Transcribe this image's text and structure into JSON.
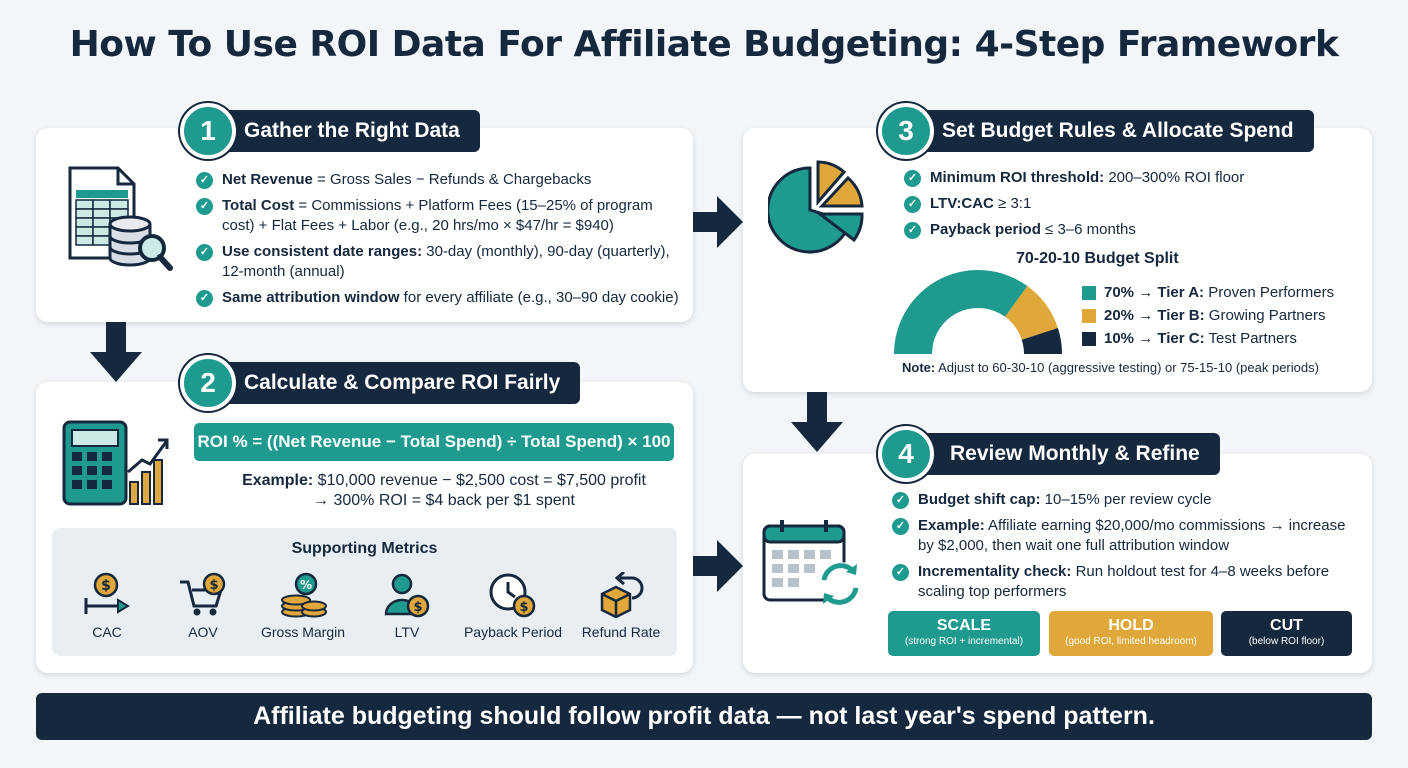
{
  "title": "How To Use ROI Data For Affiliate Budgeting: 4-Step Framework",
  "colors": {
    "teal": "#1f9a8f",
    "gold": "#e0a83a",
    "navy": "#15283d",
    "panel": "#e9eef3"
  },
  "step1": {
    "number": "1",
    "heading": "Gather the Right Data",
    "icon": "spreadsheet-database-icon",
    "bullets": [
      {
        "bold": "Net Revenue",
        "text": " = Gross Sales − Refunds & Chargebacks"
      },
      {
        "bold": "Total Cost",
        "text": " = Commissions + Platform Fees (15–25% of program cost) + Flat Fees + Labor (e.g., 20 hrs/mo × $47/hr = $940)"
      },
      {
        "bold": "Use consistent date ranges:",
        "text": " 30-day (monthly), 90-day (quarterly), 12-month (annual)"
      },
      {
        "bold": "Same attribution window",
        "text": " for every affiliate (e.g., 30–90 day cookie)"
      }
    ]
  },
  "step2": {
    "number": "2",
    "heading": "Calculate & Compare ROI Fairly",
    "icon": "calculator-chart-icon",
    "formula": "ROI % = ((Net Revenue − Total Spend) ÷ Total Spend) × 100",
    "example_bold": "Example:",
    "example_line1": " $10,000 revenue − $2,500 cost = $7,500 profit",
    "example_line2": "→ 300% ROI = $4 back per $1 spent",
    "metrics_title": "Supporting Metrics",
    "metrics": [
      {
        "label": "CAC",
        "icon": "coin-arrow-icon"
      },
      {
        "label": "AOV",
        "icon": "cart-coin-icon"
      },
      {
        "label": "Gross Margin",
        "icon": "coin-stack-icon"
      },
      {
        "label": "LTV",
        "icon": "person-coin-icon"
      },
      {
        "label": "Payback Period",
        "icon": "clock-coin-icon"
      },
      {
        "label": "Refund Rate",
        "icon": "box-return-icon"
      }
    ]
  },
  "step3": {
    "number": "3",
    "heading": "Set Budget Rules & Allocate Spend",
    "icon": "pie-chart-icon",
    "bullets": [
      {
        "bold": "Minimum ROI threshold:",
        "text": " 200–300% ROI floor"
      },
      {
        "bold": "LTV:CAC",
        "text": " ≥ 3:1"
      },
      {
        "bold": "Payback period",
        "text": " ≤ 3–6 months"
      }
    ],
    "split_title": "70-20-10 Budget Split",
    "note_bold": "Note:",
    "note_text": " Adjust to 60-30-10 (aggressive testing) or 75-15-10 (peak periods)"
  },
  "step4": {
    "number": "4",
    "heading": "Review Monthly & Refine",
    "icon": "calendar-cycle-icon",
    "bullets": [
      {
        "bold": "Budget shift cap:",
        "text": " 10–15% per review cycle"
      },
      {
        "bold": "Example:",
        "text": " Affiliate earning $20,000/mo commissions → increase by $2,000, then wait one full attribution window"
      },
      {
        "bold": "Incrementality check:",
        "text": " Run holdout test for 4–8 weeks before scaling top performers"
      }
    ],
    "actions": [
      {
        "label": "SCALE",
        "sub": "(strong ROI + incremental)"
      },
      {
        "label": "HOLD",
        "sub": "(good ROI, limited headroom)"
      },
      {
        "label": "CUT",
        "sub": "(below ROI floor)"
      }
    ]
  },
  "chart_data": {
    "type": "pie",
    "title": "70-20-10 Budget Split",
    "categories": [
      "Tier A: Proven Performers",
      "Tier B: Growing Partners",
      "Tier C: Test Partners"
    ],
    "values": [
      70,
      20,
      10
    ],
    "legend": [
      {
        "pct": "70%",
        "arrow": " → ",
        "tier": "Tier A:",
        "desc": " Proven Performers",
        "color": "#1f9a8f"
      },
      {
        "pct": "20%",
        "arrow": " → ",
        "tier": "Tier B:",
        "desc": " Growing Partners",
        "color": "#e0a83a"
      },
      {
        "pct": "10%",
        "arrow": " → ",
        "tier": "Tier C:",
        "desc": " Test Partners",
        "color": "#15283d"
      }
    ],
    "legend_position": "right"
  },
  "banner": "Affiliate budgeting should follow profit data — not last year's spend pattern."
}
